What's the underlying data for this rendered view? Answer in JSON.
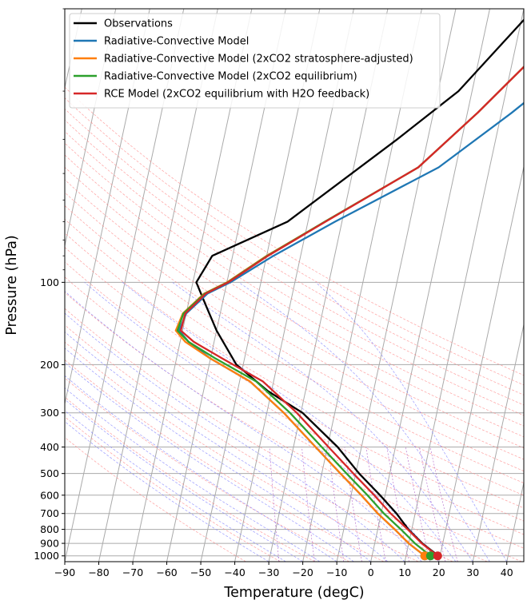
{
  "chart_data": {
    "type": "line",
    "subtype": "skew-t log-p diagram",
    "xlabel": "Temperature (degC)",
    "ylabel": "Pressure (hPa)",
    "xlim": [
      -90,
      45
    ],
    "ylim": [
      1050,
      10
    ],
    "y_scale": "log",
    "x_ticks": [
      -90,
      -80,
      -70,
      -60,
      -50,
      -40,
      -30,
      -20,
      -10,
      0,
      10,
      20,
      30,
      40
    ],
    "y_ticks": [
      100,
      200,
      300,
      400,
      500,
      600,
      700,
      800,
      900,
      1000
    ],
    "grid": true,
    "legend_position": "top-left",
    "background_lines": [
      "isotherms",
      "dry adiabats",
      "moist adiabats",
      "mixing ratio lines"
    ],
    "colors": {
      "isotherm": "#aaaaaa",
      "isobar": "#aaaaaa",
      "dry_adiabat": "#ff7f7f",
      "moist_adiabat": "#7f7fff",
      "mixing_ratio": "#b060c8"
    },
    "series": [
      {
        "name": "Observations",
        "color": "#000000",
        "points": [
          [
            19.5,
            1000
          ],
          [
            14,
            900
          ],
          [
            9,
            800
          ],
          [
            4.5,
            700
          ],
          [
            -1.5,
            600
          ],
          [
            -9,
            500
          ],
          [
            -17,
            400
          ],
          [
            -29.5,
            300
          ],
          [
            -41,
            250
          ],
          [
            -52,
            200
          ],
          [
            -60,
            150
          ],
          [
            -65,
            120
          ],
          [
            -69,
            100
          ],
          [
            -66,
            80
          ],
          [
            -46,
            60
          ],
          [
            -19,
            30
          ],
          [
            -4,
            20
          ],
          [
            13,
            10
          ]
        ]
      },
      {
        "name": "Radiative-Convective Model",
        "color": "#1f77b4",
        "points": [
          [
            15.5,
            1000
          ],
          [
            10,
            900
          ],
          [
            5,
            800
          ],
          [
            -1,
            700
          ],
          [
            -7,
            600
          ],
          [
            -14.5,
            500
          ],
          [
            -23.5,
            400
          ],
          [
            -35,
            300
          ],
          [
            -47,
            230
          ],
          [
            -60,
            190
          ],
          [
            -67.5,
            165
          ],
          [
            -71,
            150
          ],
          [
            -70,
            130
          ],
          [
            -65,
            110
          ],
          [
            -59,
            100
          ],
          [
            -48,
            80
          ],
          [
            -32,
            60
          ],
          [
            -5,
            38
          ],
          [
            13,
            24
          ],
          [
            30,
            15
          ]
        ]
      },
      {
        "name": "Radiative-Convective Model (2xCO2 stratosphere-adjusted)",
        "color": "#ff7f0e",
        "points": [
          [
            15.5,
            1000
          ],
          [
            10,
            900
          ],
          [
            5,
            800
          ],
          [
            -1,
            700
          ],
          [
            -7,
            600
          ],
          [
            -14.5,
            500
          ],
          [
            -23.5,
            400
          ],
          [
            -35,
            300
          ],
          [
            -47,
            230
          ],
          [
            -60,
            190
          ],
          [
            -68.5,
            165
          ],
          [
            -72,
            150
          ],
          [
            -71,
            130
          ],
          [
            -66,
            110
          ],
          [
            -60,
            100
          ],
          [
            -50,
            80
          ],
          [
            -35,
            60
          ],
          [
            -11,
            38
          ],
          [
            3,
            24
          ],
          [
            16,
            15
          ],
          [
            30,
            10
          ]
        ]
      },
      {
        "name": "Radiative-Convective Model (2xCO2 equilibrium)",
        "color": "#2ca02c",
        "points": [
          [
            17.2,
            1000
          ],
          [
            11.8,
            900
          ],
          [
            6.8,
            800
          ],
          [
            0.8,
            700
          ],
          [
            -5.2,
            600
          ],
          [
            -12.7,
            500
          ],
          [
            -21.7,
            400
          ],
          [
            -33.2,
            300
          ],
          [
            -45.2,
            230
          ],
          [
            -58.5,
            190
          ],
          [
            -67.5,
            165
          ],
          [
            -71.5,
            150
          ],
          [
            -70.8,
            130
          ],
          [
            -65.8,
            110
          ],
          [
            -59.8,
            100
          ],
          [
            -49.8,
            80
          ],
          [
            -35,
            60
          ],
          [
            -11,
            38
          ],
          [
            3,
            24
          ],
          [
            16,
            15
          ],
          [
            30,
            10
          ]
        ]
      },
      {
        "name": "RCE Model (2xCO2 equilibrium with H2O feedback)",
        "color": "#d62728",
        "points": [
          [
            19.3,
            1000
          ],
          [
            13.8,
            900
          ],
          [
            8.8,
            800
          ],
          [
            2.8,
            700
          ],
          [
            -3.2,
            600
          ],
          [
            -10.7,
            500
          ],
          [
            -19.7,
            400
          ],
          [
            -31.2,
            300
          ],
          [
            -43.2,
            230
          ],
          [
            -56.5,
            190
          ],
          [
            -66,
            165
          ],
          [
            -70.5,
            150
          ],
          [
            -70.3,
            130
          ],
          [
            -65.5,
            110
          ],
          [
            -59.6,
            100
          ],
          [
            -49.6,
            80
          ],
          [
            -34.8,
            60
          ],
          [
            -11,
            38
          ],
          [
            3,
            24
          ],
          [
            16,
            15
          ],
          [
            30,
            10
          ]
        ]
      }
    ]
  }
}
